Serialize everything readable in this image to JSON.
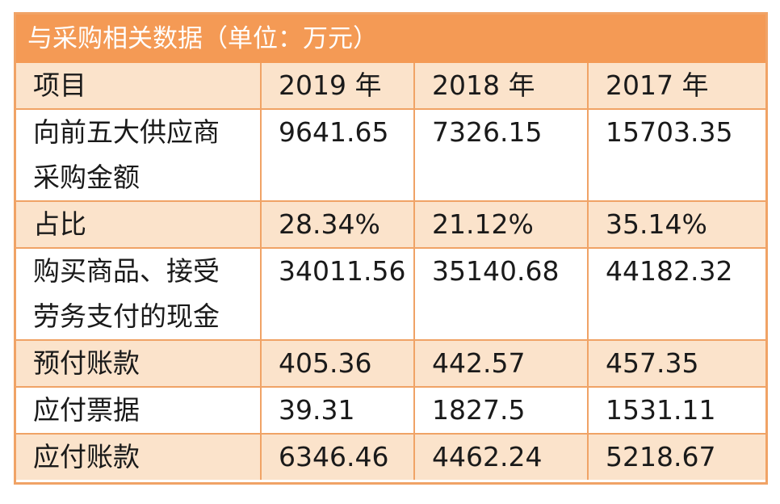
{
  "title": "与采购相关数据（单位：万元）",
  "header": [
    "项目",
    "2019 年",
    "2018 年",
    "2017 年"
  ],
  "rows": [
    {
      "label_lines": [
        "向前五大供应商",
        "采购金额"
      ],
      "values": [
        "9641.65",
        "7326.15",
        "15703.35"
      ]
    },
    {
      "label_lines": [
        "占比"
      ],
      "values": [
        "28.34%",
        "21.12%",
        "35.14%"
      ]
    },
    {
      "label_lines": [
        "购买商品、接受",
        "劳务支付的现金"
      ],
      "values": [
        "34011.56",
        "35140.68",
        "44182.32"
      ]
    },
    {
      "label_lines": [
        "预付账款"
      ],
      "values": [
        "405.36",
        "442.57",
        "457.35"
      ]
    },
    {
      "label_lines": [
        "应付票据"
      ],
      "values": [
        "39.31",
        "1827.5",
        "1531.11"
      ]
    },
    {
      "label_lines": [
        "应付账款"
      ],
      "values": [
        "6346.46",
        "4462.24",
        "5218.67"
      ]
    }
  ],
  "colors": {
    "title_bg": "#f49a55",
    "shaded_row": "#fbe3cb",
    "border": "#f0a366"
  }
}
